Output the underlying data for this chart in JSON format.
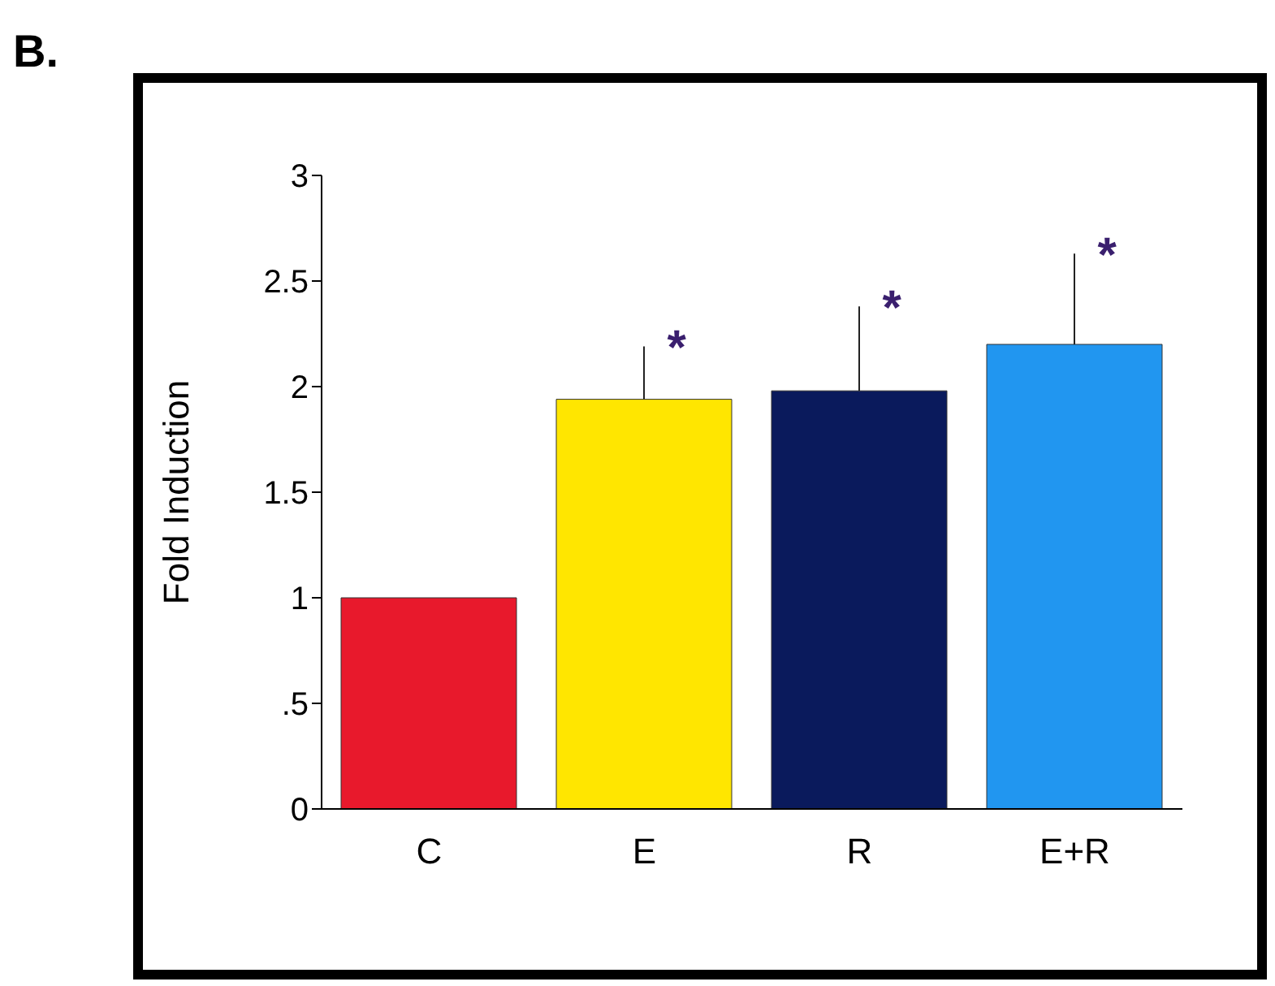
{
  "chart_data": {
    "type": "bar",
    "title": "B.",
    "ylabel": "Fold Induction",
    "categories": [
      "C",
      "E",
      "R",
      "E+R"
    ],
    "values": [
      1.0,
      1.94,
      1.98,
      2.2
    ],
    "colors": [
      "#e8192c",
      "#ffe600",
      "#0a1a5c",
      "#2196f0"
    ],
    "errors": [
      null,
      [
        1.94,
        2.19
      ],
      [
        1.98,
        2.38
      ],
      [
        2.2,
        2.63
      ]
    ],
    "ylim": [
      0,
      3
    ],
    "yticks": [
      0,
      {
        "value": 0.5,
        "label": ".5"
      },
      1,
      1.5,
      2,
      2.5,
      3
    ],
    "annotations": [
      {
        "text": "*",
        "x": "E",
        "y": 2.19
      },
      {
        "text": "*",
        "x": "R",
        "y": 2.38
      },
      {
        "text": "*",
        "x": "E+R",
        "y": 2.63
      }
    ],
    "grid": false,
    "legend": false
  }
}
